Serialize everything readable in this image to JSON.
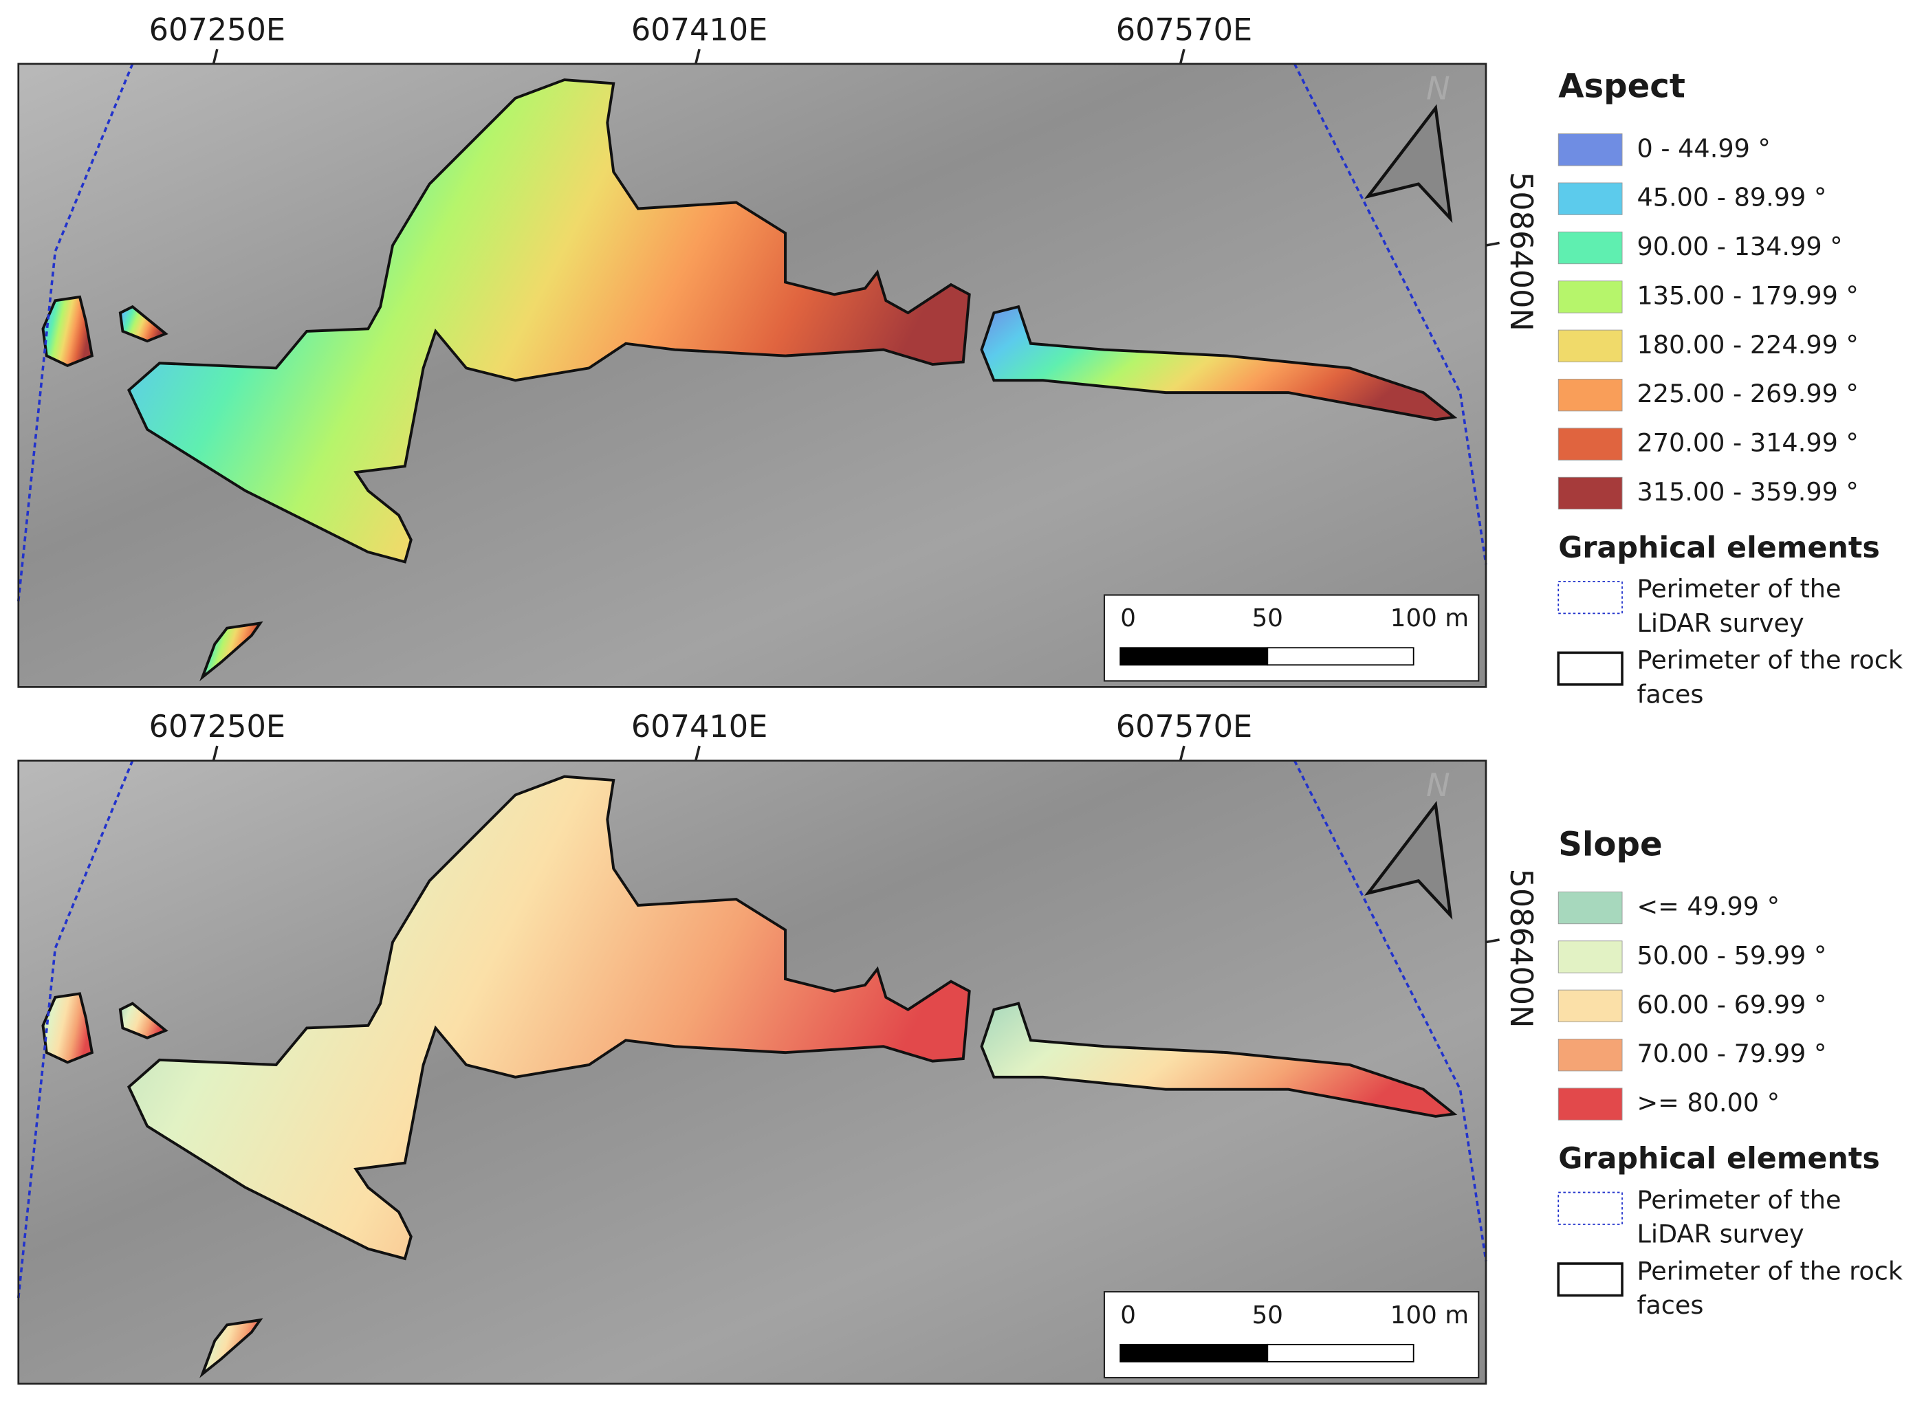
{
  "panels": [
    {
      "x_labels": [
        "607250E",
        "607410E",
        "607570E"
      ],
      "y_label": "5086400N",
      "north": "N",
      "scale_labels": [
        "0",
        "50",
        "100 m"
      ],
      "legend": {
        "title": "Aspect",
        "classes": [
          {
            "label": "0 - 44.99 °",
            "color": "#6f8de3"
          },
          {
            "label": "45.00 - 89.99 °",
            "color": "#5ccbec"
          },
          {
            "label": "90.00 - 134.99 °",
            "color": "#5fefb0"
          },
          {
            "label": "135.00 - 179.99 °",
            "color": "#b6f56b"
          },
          {
            "label": "180.00 - 224.99 °",
            "color": "#f0da6a"
          },
          {
            "label": "225.00 - 269.99 °",
            "color": "#f99e59"
          },
          {
            "label": "270.00 - 314.99 °",
            "color": "#e0643f"
          },
          {
            "label": "315.00 - 359.99 °",
            "color": "#a63b3b"
          }
        ]
      },
      "graphical_elements": {
        "title": "Graphical elements",
        "items": [
          "Perimeter of the LiDAR survey",
          "Perimeter of the rock faces"
        ]
      }
    },
    {
      "x_labels": [
        "607250E",
        "607410E",
        "607570E"
      ],
      "y_label": "5086400N",
      "north": "N",
      "scale_labels": [
        "0",
        "50",
        "100 m"
      ],
      "legend": {
        "title": "Slope",
        "classes": [
          {
            "label": "<= 49.99 °",
            "color": "#a7d8bd"
          },
          {
            "label": "50.00 - 59.99 °",
            "color": "#e2f2c4"
          },
          {
            "label": "60.00 - 69.99 °",
            "color": "#fbe0a8"
          },
          {
            "label": "70.00 - 79.99 °",
            "color": "#f5a474"
          },
          {
            "label": ">= 80.00 °",
            "color": "#e2494b"
          }
        ]
      },
      "graphical_elements": {
        "title": "Graphical elements",
        "items": [
          "Perimeter of the LiDAR survey",
          "Perimeter of the rock faces"
        ]
      }
    }
  ]
}
